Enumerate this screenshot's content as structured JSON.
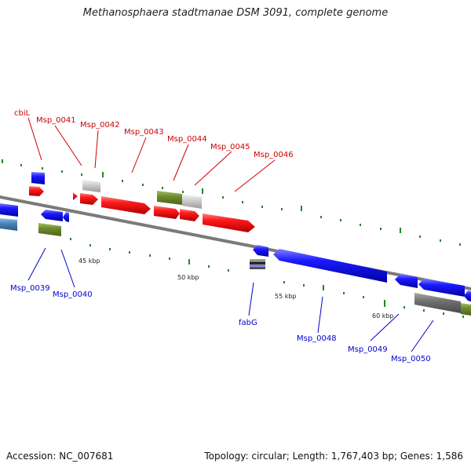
{
  "title": "Methanosphaera stadtmanae DSM 3091, complete genome",
  "accession": "Accession: NC_007681",
  "topology": "Topology: circular; Length: 1,767,403 bp; Genes: 1,586",
  "colors": {
    "forward_label": "#cc0000",
    "reverse_label": "#0000cc",
    "red_gene": "#ee0000",
    "blue_gene": "#0000ee",
    "gray_gene": "#c8c8c8",
    "olive_gene": "#6a8a2a",
    "steel_gene": "#4a86b8",
    "dark_gene": "#707070",
    "backbone": "#808080",
    "tick": "#228822"
  },
  "scale_labels": [
    "45 kbp",
    "50 kbp",
    "55 kbp",
    "60 kbp"
  ],
  "forward_labels": [
    "cbiL",
    "Msp_0041",
    "Msp_0042",
    "Msp_0043",
    "Msp_0044",
    "Msp_0045",
    "Msp_0046"
  ],
  "reverse_labels": [
    "Msp_0039",
    "Msp_0040",
    "fabG",
    "Msp_0048",
    "Msp_0049",
    "Msp_0050"
  ]
}
